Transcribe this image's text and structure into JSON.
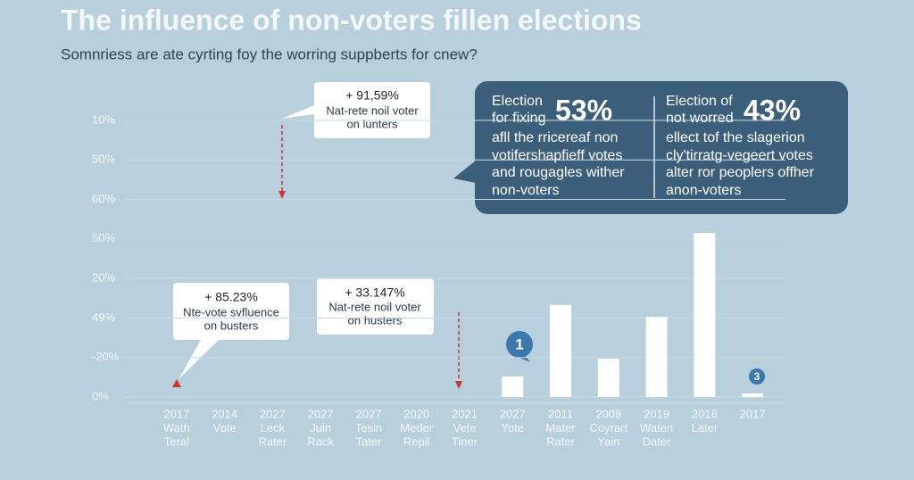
{
  "chart_data": {
    "type": "bar",
    "title": "The influence of non-voters fillen elections",
    "subtitle": "Somnriess are ate cyrting foy the worring suppberts for cnew?",
    "color": "#ffffff",
    "grid": true,
    "ylim": [
      0,
      7.3
    ],
    "yticks": [
      {
        "value": 0,
        "label": "0%"
      },
      {
        "value": 1,
        "label": "-20%"
      },
      {
        "value": 2,
        "label": "49%"
      },
      {
        "value": 3,
        "label": "20%"
      },
      {
        "value": 4,
        "label": "50%"
      },
      {
        "value": 5,
        "label": "60%"
      },
      {
        "value": 6,
        "label": "50%"
      },
      {
        "value": 7,
        "label": "10%"
      }
    ],
    "categories": [
      [
        "2017",
        "Wath",
        "Teral"
      ],
      [
        "2014",
        "Vote"
      ],
      [
        "2027",
        "Leck",
        "Rater"
      ],
      [
        "2027",
        "Juin",
        "Rack"
      ],
      [
        "2027",
        "Tesin",
        "Tater"
      ],
      [
        "2020",
        "Meder",
        "Repil"
      ],
      [
        "2021",
        "Vete",
        "Tiner"
      ],
      [
        "2027",
        "Yote"
      ],
      [
        "2011",
        "Mater",
        "Rater"
      ],
      [
        "2008",
        "Coyrart",
        "Yain"
      ],
      [
        "2019",
        "Waten",
        "Dater"
      ],
      [
        "2016",
        "Later"
      ],
      [
        "2017"
      ]
    ],
    "values": [
      null,
      null,
      null,
      null,
      null,
      null,
      null,
      0.52,
      2.33,
      0.97,
      2.03,
      4.15,
      0.09
    ],
    "annotations": {
      "callout_top": [
        "+ 91,59%",
        "Nat-rete noil voter",
        "on lunters"
      ],
      "callout_left": [
        "+ 85.23%",
        "Nte-vote svfluence",
        "on busters"
      ],
      "callout_mid": [
        "+ 33.147%",
        "Nat-rete noil voter",
        "on husters"
      ],
      "panel_left": {
        "heading": [
          "Election",
          "for fixing"
        ],
        "figure": "53%",
        "lines": [
          "afll the rricereaf non",
          "votifershapfieff votes",
          "and rougagles wither",
          "non-voters"
        ]
      },
      "panel_right": {
        "heading": [
          "Election of",
          "not worred"
        ],
        "figure": "43%",
        "lines": [
          "ellect tof the slagerion",
          "cly'tirratg-vegeert votes",
          "alter ror peoplers offher",
          "anon-voters"
        ]
      },
      "markers": [
        "1",
        "3"
      ]
    }
  }
}
